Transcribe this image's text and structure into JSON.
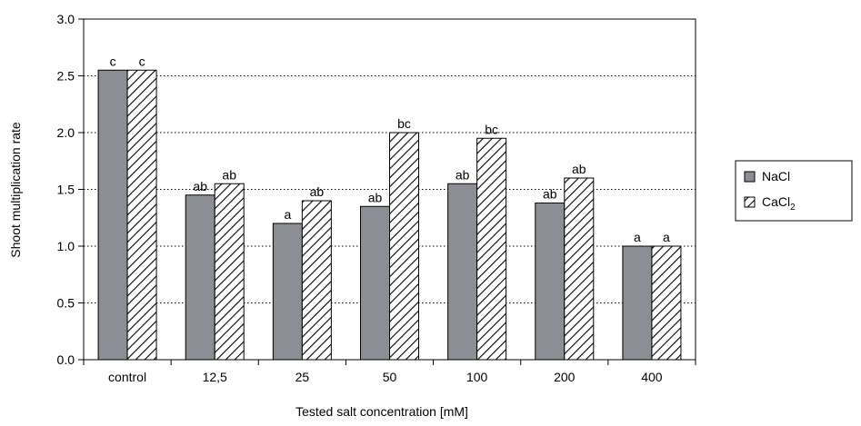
{
  "chart_data": {
    "type": "bar",
    "title": "",
    "xlabel": "Tested salt concentration [mM]",
    "ylabel": "Shoot multiplication rate",
    "categories": [
      "control",
      "12,5",
      "25",
      "50",
      "100",
      "200",
      "400"
    ],
    "ylim": [
      0,
      3.0
    ],
    "yticks": [
      "0.0",
      "0.5",
      "1.0",
      "1.5",
      "2.0",
      "2.5",
      "3.0"
    ],
    "grid": "horizontal dotted",
    "legend_position": "right",
    "series": [
      {
        "name": "NaCl",
        "legend_label": "NaCl",
        "color": "#8c8e96",
        "fill": "solid",
        "values": [
          2.55,
          1.45,
          1.2,
          1.35,
          1.55,
          1.38,
          1.0
        ],
        "letters": [
          "c",
          "ab",
          "a",
          "ab",
          "ab",
          "ab",
          "a"
        ]
      },
      {
        "name": "CaCl2",
        "legend_label": "CaCl",
        "legend_sub": "2",
        "color": "#000000",
        "fill": "diagonal-hatch",
        "values": [
          2.55,
          1.55,
          1.4,
          2.0,
          1.95,
          1.6,
          1.0
        ],
        "letters": [
          "c",
          "ab",
          "ab",
          "bc",
          "bc",
          "ab",
          "a"
        ]
      }
    ]
  }
}
